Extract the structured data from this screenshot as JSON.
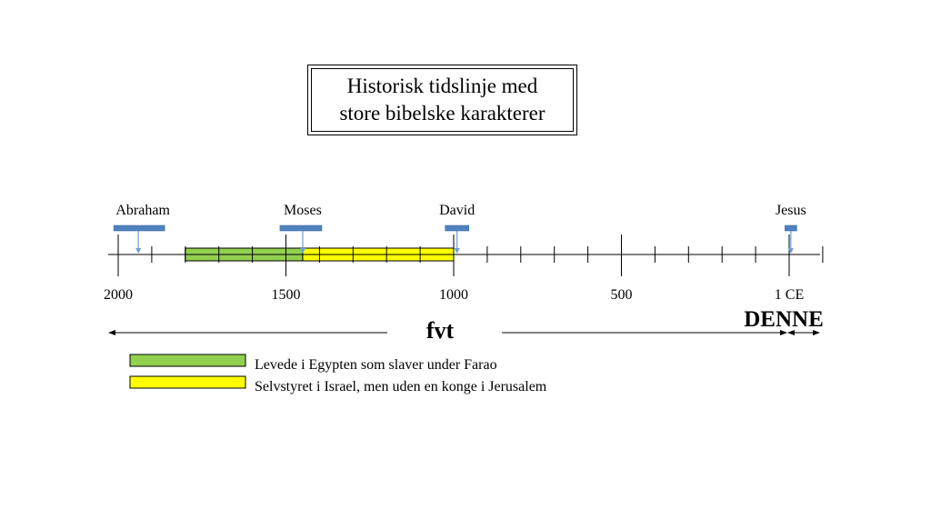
{
  "title": {
    "line1": "Historisk tidslinje med",
    "line2": "store bibelske karakterer"
  },
  "axis": {
    "min_year_bce": 2100,
    "max_year_ce": 100,
    "minor_tick_step": 100,
    "major_ticks": [
      {
        "year": -2000,
        "label": "2000"
      },
      {
        "year": -1500,
        "label": "1500"
      },
      {
        "year": -1000,
        "label": "1000"
      },
      {
        "year": -500,
        "label": "500"
      },
      {
        "year": 0,
        "label": "1 CE"
      }
    ]
  },
  "characters": [
    {
      "name": "Abraham",
      "year": -1940
    },
    {
      "name": "Moses",
      "year": -1450
    },
    {
      "name": "David",
      "year": -990
    },
    {
      "name": "Jesus",
      "year": 5
    }
  ],
  "periods": [
    {
      "id": "egypt",
      "start": -1800,
      "end": -1450,
      "color": "#92d050",
      "legend": "Levede i Egypten som slaver under Farao"
    },
    {
      "id": "judges",
      "start": -1450,
      "end": -1000,
      "color": "#ffff00",
      "legend": "Selvstyret i Israel, men uden en konge i Jerusalem"
    }
  ],
  "eras": {
    "bce_label": "fvt",
    "ce_label": "DENNE"
  },
  "colors": {
    "marker": "#4f81bd",
    "marker_arrow": "#6a9fd4"
  }
}
